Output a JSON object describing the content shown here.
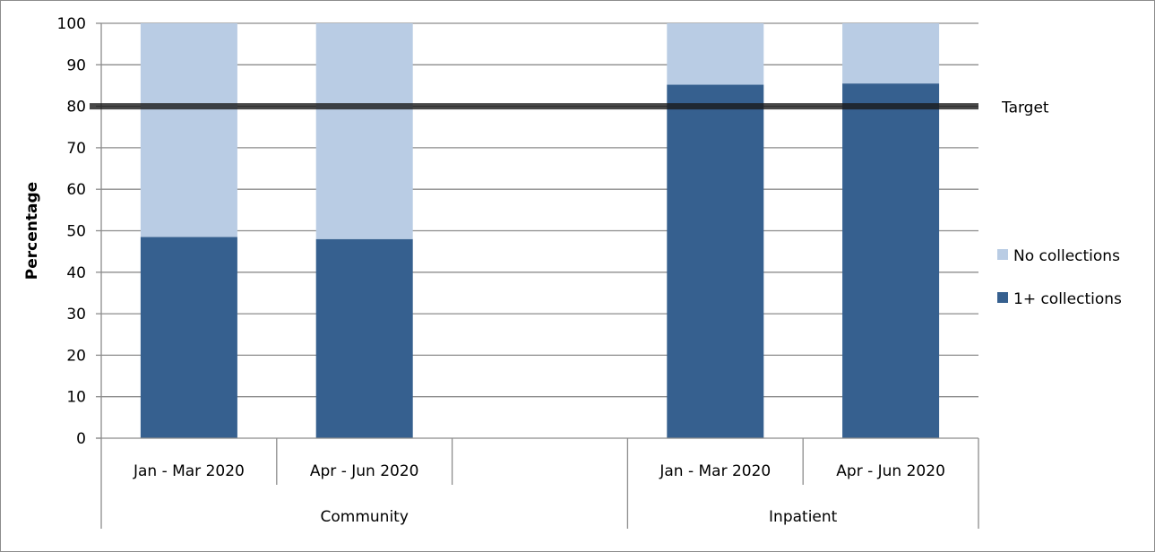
{
  "chart_data": {
    "type": "bar",
    "stacked": true,
    "ylabel": "Percentage",
    "xlabel": "",
    "title": "",
    "ylim": [
      0,
      100
    ],
    "yticks": [
      0,
      10,
      20,
      30,
      40,
      50,
      60,
      70,
      80,
      90,
      100
    ],
    "grid": true,
    "categories": [
      "Jan - Mar 2020",
      "Apr - Jun 2020",
      "",
      "Jan - Mar 2020",
      "Apr - Jun 2020"
    ],
    "groups": [
      {
        "label": "Community",
        "span": [
          0,
          2
        ]
      },
      {
        "label": "Inpatient",
        "span": [
          3,
          4
        ]
      }
    ],
    "series": [
      {
        "name": "1+ collections",
        "color": "#36608F",
        "values": [
          48.5,
          48.0,
          null,
          85.2,
          85.5
        ]
      },
      {
        "name": "No collections",
        "color": "#B9CCE4",
        "values": [
          51.5,
          52.0,
          null,
          14.8,
          14.5
        ]
      }
    ],
    "target": {
      "label": "Target",
      "value": 80,
      "color": "#1a1a1a"
    },
    "legend": {
      "placement": "right",
      "items": [
        "No collections",
        "1+ collections"
      ]
    }
  }
}
